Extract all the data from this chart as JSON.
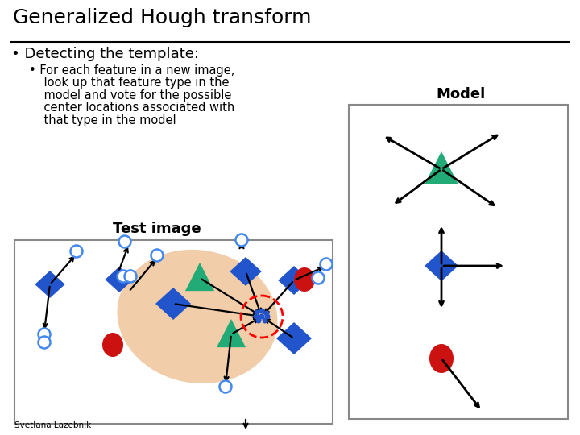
{
  "title": "Generalized Hough transform",
  "bullet1": "Detecting the template:",
  "bullet2_lines": [
    "For each feature in a new image,",
    "look up that feature type in the",
    "model and vote for the possible",
    "center locations associated with",
    "that type in the model"
  ],
  "test_label": "Test image",
  "model_label": "Model",
  "credit": "Svetlana Lazebnik",
  "bg_color": "#ffffff",
  "panel_border": "#888888",
  "blue": "#2255cc",
  "green": "#22aa77",
  "red": "#cc1111",
  "blob_color": "#f0c8a0",
  "circle_outline": "#4488ee",
  "title_fontsize": 18,
  "bullet1_fontsize": 13,
  "bullet2_fontsize": 10.5,
  "label_fontsize": 13,
  "credit_fontsize": 7.5
}
